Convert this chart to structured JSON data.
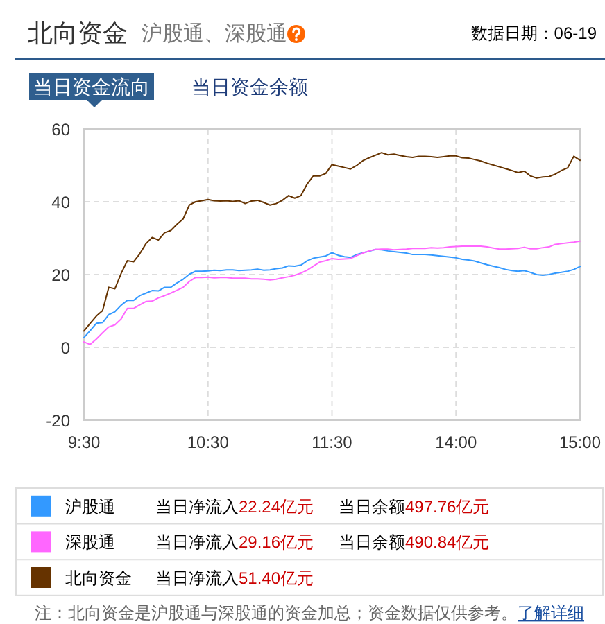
{
  "chart_data": {
    "type": "line",
    "title": "北向资金",
    "subtitle": "沪股通、深股通",
    "categories": [
      "9:30",
      null,
      null,
      null,
      null,
      null,
      null,
      null,
      null,
      null,
      null,
      null,
      null,
      null,
      null,
      null,
      null,
      null,
      null,
      null,
      "10:30",
      null,
      null,
      null,
      null,
      null,
      null,
      null,
      null,
      null,
      null,
      null,
      null,
      null,
      null,
      null,
      null,
      null,
      null,
      null,
      "11:30",
      null,
      null,
      null,
      null,
      null,
      null,
      null,
      null,
      null,
      null,
      null,
      null,
      null,
      null,
      null,
      null,
      null,
      null,
      null,
      "14:00",
      null,
      null,
      null,
      null,
      null,
      null,
      null,
      null,
      null,
      null,
      null,
      null,
      null,
      null,
      null,
      null,
      null,
      null,
      null,
      "15:00"
    ],
    "ylim": [
      -20,
      60
    ],
    "yticks": [
      -20,
      0,
      20,
      40,
      60
    ],
    "grid": true,
    "legend": "bottom",
    "series": [
      {
        "name": "沪股通",
        "color": "#3399ff",
        "values": [
          2.7,
          4.6,
          6.6,
          6.8,
          9.0,
          9.8,
          11.6,
          12.9,
          12.9,
          14.2,
          14.9,
          15.6,
          15.5,
          16.5,
          16.5,
          17.7,
          18.7,
          20.1,
          20.9,
          20.9,
          21.0,
          21.2,
          21.1,
          21.3,
          21.3,
          21.1,
          21.2,
          21.3,
          21.5,
          21.2,
          21.3,
          21.6,
          21.8,
          22.4,
          22.3,
          22.6,
          23.8,
          24.5,
          24.8,
          25.1,
          26.0,
          25.3,
          24.9,
          24.7,
          25.5,
          26.0,
          26.4,
          26.9,
          26.8,
          26.5,
          26.3,
          26.1,
          25.9,
          25.5,
          25.5,
          25.5,
          25.4,
          25.2,
          25.0,
          24.8,
          24.6,
          24.2,
          24.0,
          23.7,
          23.2,
          22.7,
          22.3,
          21.9,
          21.4,
          21.1,
          20.9,
          21.1,
          20.6,
          20.0,
          19.8,
          20.0,
          20.4,
          20.6,
          20.9,
          21.4,
          22.2
        ]
      },
      {
        "name": "深股通",
        "color": "#ff66ff",
        "values": [
          1.5,
          0.8,
          2.3,
          4.0,
          5.6,
          6.2,
          7.8,
          10.7,
          10.7,
          11.7,
          12.6,
          12.7,
          13.6,
          14.2,
          14.9,
          15.7,
          16.5,
          18.1,
          19.2,
          19.2,
          19.3,
          19.1,
          19.2,
          19.2,
          19.0,
          19.0,
          19.0,
          18.8,
          18.8,
          18.7,
          18.5,
          18.7,
          19.1,
          19.4,
          19.8,
          20.4,
          21.2,
          22.3,
          23.4,
          23.8,
          24.4,
          24.2,
          24.3,
          24.4,
          25.2,
          25.9,
          26.5,
          26.9,
          27.0,
          27.0,
          26.8,
          26.9,
          27.0,
          27.2,
          27.2,
          27.2,
          27.4,
          27.3,
          27.4,
          27.6,
          27.7,
          27.8,
          27.8,
          27.8,
          27.8,
          27.6,
          27.3,
          27.0,
          27.0,
          27.1,
          27.2,
          27.5,
          27.1,
          27.1,
          27.4,
          27.6,
          28.3,
          28.5,
          28.7,
          28.9,
          29.2
        ]
      },
      {
        "name": "北向资金",
        "color": "#663300",
        "values": [
          4.5,
          6.6,
          8.6,
          10.1,
          16.5,
          16.1,
          20.3,
          23.8,
          23.5,
          25.7,
          28.5,
          30.2,
          29.5,
          31.5,
          32.1,
          33.8,
          35.3,
          39.1,
          40.0,
          40.3,
          40.6,
          40.3,
          40.2,
          40.3,
          40.1,
          40.3,
          39.5,
          40.2,
          40.4,
          39.8,
          39.1,
          39.5,
          40.4,
          41.7,
          41.0,
          41.7,
          44.9,
          47.1,
          47.1,
          47.8,
          50.2,
          49.8,
          49.4,
          49.0,
          50.0,
          51.3,
          52.1,
          52.8,
          53.5,
          52.9,
          53.1,
          52.7,
          52.4,
          52.2,
          52.5,
          52.5,
          52.4,
          52.2,
          52.4,
          52.6,
          52.6,
          52.1,
          52.0,
          51.6,
          51.2,
          50.6,
          50.1,
          49.6,
          49.1,
          48.6,
          48.0,
          48.4,
          47.1,
          46.5,
          46.8,
          46.9,
          47.6,
          48.6,
          49.3,
          52.5,
          51.4
        ]
      }
    ],
    "annotations": [
      "数据日期：06-19",
      "当日资金流向",
      "当日资金余额",
      "当日净流入",
      "22.24亿元",
      "当日余额",
      "497.76亿元",
      "当日净流入",
      "29.16亿元",
      "当日余额",
      "490.84亿元",
      "当日净流入",
      "51.40亿元",
      "注：北向资金是沪股通与深股通的资金加总；资金数据仅供参考。",
      "了解详细"
    ]
  }
}
